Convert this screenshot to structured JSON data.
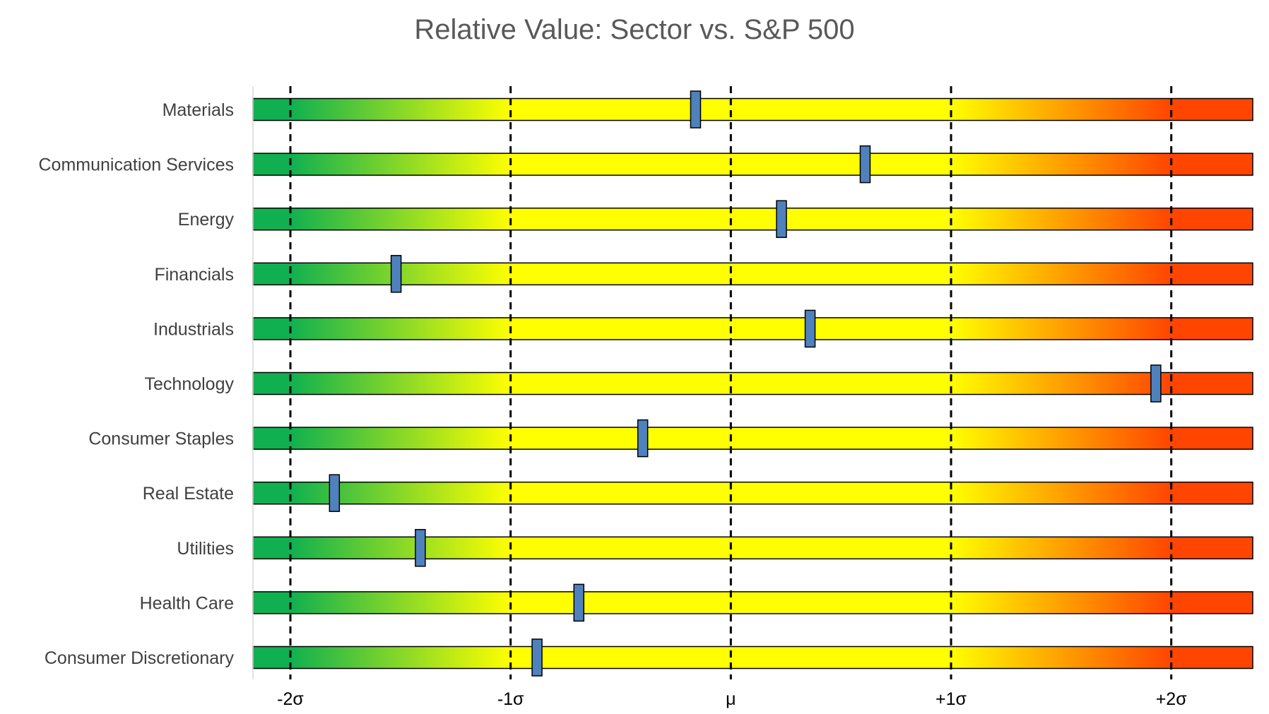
{
  "chart_data": {
    "type": "bar",
    "title": "Relative Value: Sector vs. S&P 500",
    "xlim": [
      -2.17,
      2.37
    ],
    "ticks": [
      {
        "value": -2,
        "label": "-2σ"
      },
      {
        "value": -1,
        "label": "-1σ"
      },
      {
        "value": 0,
        "label": "μ"
      },
      {
        "value": 1,
        "label": "+1σ"
      },
      {
        "value": 2,
        "label": "+2σ"
      }
    ],
    "categories": [
      "Materials",
      "Communication Services",
      "Energy",
      "Financials",
      "Industrials",
      "Technology",
      "Consumer Staples",
      "Real Estate",
      "Utilities",
      "Health Care",
      "Consumer Discretionary"
    ],
    "values": [
      -0.16,
      0.61,
      0.23,
      -1.52,
      0.36,
      1.93,
      -0.4,
      -1.8,
      -1.41,
      -0.69,
      -0.88
    ],
    "gradient_colors": {
      "green": "#10b050",
      "yellow": "#ffff00",
      "orange": "#ffa000",
      "red": "#ff4500"
    },
    "marker_color": "#4f81bd",
    "grid": false
  }
}
